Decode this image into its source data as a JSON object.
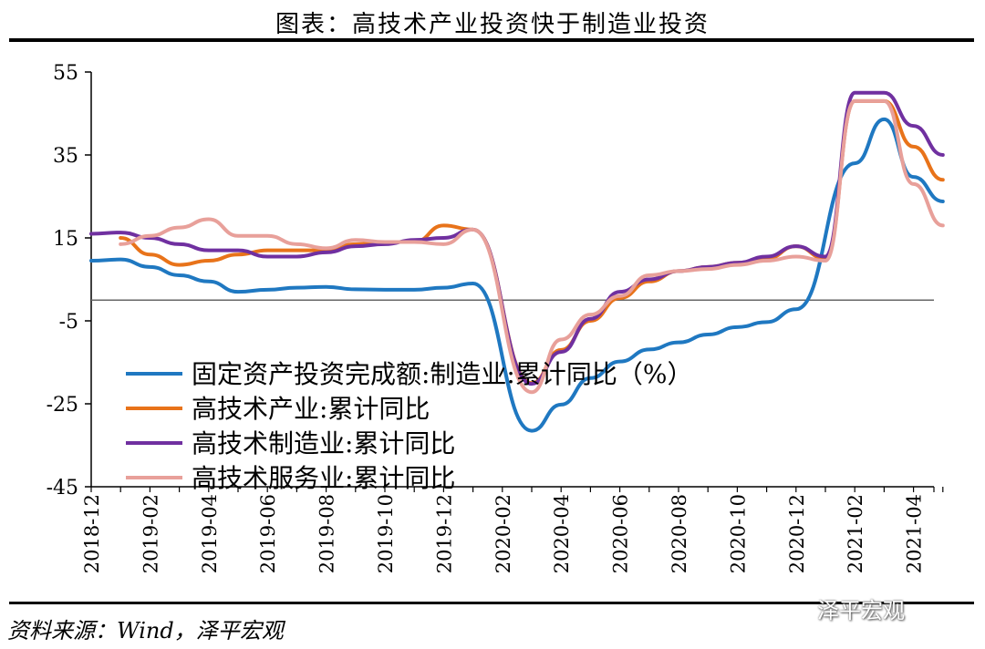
{
  "header": {
    "title": "图表：高技术产业投资快于制造业投资"
  },
  "footer": {
    "source": "资料来源：Wind，泽平宏观",
    "watermark": "泽平宏观"
  },
  "chart_data": {
    "type": "line",
    "title": "图表：高技术产业投资快于制造业投资",
    "ylim": [
      -45,
      55
    ],
    "yticks": [
      55,
      35,
      15,
      -5,
      -25,
      -45
    ],
    "xticks": [
      "2018-12",
      "2019-02",
      "2019-04",
      "2019-06",
      "2019-08",
      "2019-10",
      "2019-12",
      "2020-02",
      "2020-04",
      "2020-06",
      "2020-08",
      "2020-10",
      "2020-12",
      "2021-02",
      "2021-04"
    ],
    "x": [
      "2018-12",
      "2019-01",
      "2019-02",
      "2019-03",
      "2019-04",
      "2019-05",
      "2019-06",
      "2019-07",
      "2019-08",
      "2019-09",
      "2019-10",
      "2019-11",
      "2019-12",
      "2020-01",
      "2020-02",
      "2020-03",
      "2020-04",
      "2020-05",
      "2020-06",
      "2020-07",
      "2020-08",
      "2020-09",
      "2020-10",
      "2020-11",
      "2020-12",
      "2021-01",
      "2021-02",
      "2021-03",
      "2021-04",
      "2021-05"
    ],
    "legend_position": "bottom-left",
    "series": [
      {
        "name": "固定资产投资完成额:制造业:累计同比（%）",
        "color": "#1f78c1",
        "values": [
          9.5,
          9.8,
          8.0,
          6.0,
          4.5,
          2.0,
          2.5,
          3.0,
          3.2,
          2.6,
          2.5,
          2.5,
          3.0,
          4.0,
          null,
          -31.5,
          -25.2,
          -18.8,
          -14.8,
          -11.9,
          -10.2,
          -8.3,
          -6.5,
          -5.3,
          -2.2,
          null,
          33.0,
          43.6,
          29.7,
          23.8
        ]
      },
      {
        "name": "高技术产业:累计同比",
        "color": "#e8731a",
        "values": [
          null,
          15.0,
          11.0,
          8.5,
          9.5,
          11.0,
          12.0,
          12.0,
          12.0,
          13.5,
          14.0,
          14.0,
          18.0,
          17.0,
          null,
          -20.0,
          -12.0,
          -5.0,
          0.5,
          4.5,
          7.0,
          8.0,
          9.0,
          10.0,
          13.0,
          10.0,
          48.0,
          48.0,
          37.0,
          29.0
        ]
      },
      {
        "name": "高技术制造业:累计同比",
        "color": "#7030a0",
        "values": [
          16.0,
          16.3,
          15.0,
          13.5,
          12.0,
          12.0,
          10.5,
          10.5,
          11.5,
          13.0,
          13.5,
          14.5,
          15.0,
          17.0,
          null,
          -20.2,
          -12.5,
          -4.5,
          2.0,
          5.0,
          7.0,
          8.0,
          9.0,
          10.5,
          13.0,
          10.5,
          50.0,
          50.0,
          42.0,
          35.0
        ]
      },
      {
        "name": "高技术服务业:累计同比",
        "color": "#e8a09a",
        "values": [
          null,
          13.5,
          15.5,
          17.5,
          19.5,
          15.5,
          15.5,
          13.5,
          12.5,
          14.5,
          14.0,
          14.0,
          13.5,
          17.0,
          null,
          -22.2,
          -9.5,
          -3.5,
          1.0,
          6.0,
          7.0,
          7.5,
          8.5,
          9.5,
          10.5,
          9.5,
          48.0,
          48.0,
          28.0,
          18.0
        ]
      }
    ]
  }
}
